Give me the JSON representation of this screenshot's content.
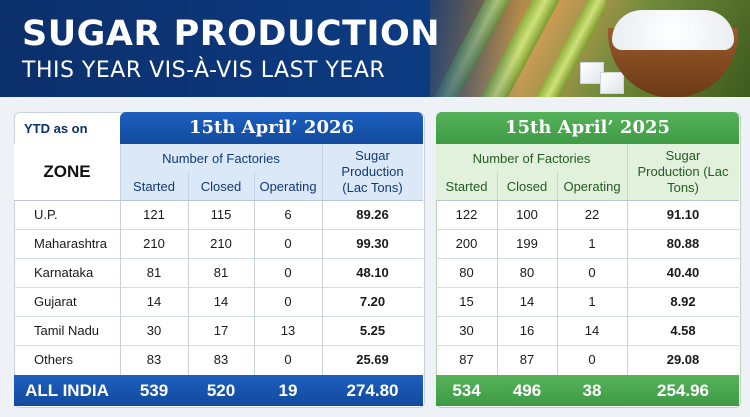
{
  "header": {
    "title": "SUGAR PRODUCTION",
    "subtitle": "THIS YEAR VIS-À-VIS LAST YEAR"
  },
  "table": {
    "ytd_label": "YTD as on",
    "zone_header": "ZONE",
    "factories_header": "Number of Factories",
    "production_header": "Sugar Production (Lac Tons)",
    "sub_headers": [
      "Started",
      "Closed",
      "Operating"
    ],
    "periods": [
      {
        "date": "15th April’ 2026",
        "accent": "#124a9c"
      },
      {
        "date": "15th April’ 2025",
        "accent": "#3f9a45"
      }
    ],
    "rows": [
      {
        "zone": "U.P.",
        "y2026": [
          "121",
          "115",
          "6",
          "89.26"
        ],
        "y2025": [
          "122",
          "100",
          "22",
          "91.10"
        ]
      },
      {
        "zone": "Maharashtra",
        "y2026": [
          "210",
          "210",
          "0",
          "99.30"
        ],
        "y2025": [
          "200",
          "199",
          "1",
          "80.88"
        ]
      },
      {
        "zone": "Karnataka",
        "y2026": [
          "81",
          "81",
          "0",
          "48.10"
        ],
        "y2025": [
          "80",
          "80",
          "0",
          "40.40"
        ]
      },
      {
        "zone": "Gujarat",
        "y2026": [
          "14",
          "14",
          "0",
          "7.20"
        ],
        "y2025": [
          "15",
          "14",
          "1",
          "8.92"
        ]
      },
      {
        "zone": "Tamil Nadu",
        "y2026": [
          "30",
          "17",
          "13",
          "5.25"
        ],
        "y2025": [
          "30",
          "16",
          "14",
          "4.58"
        ]
      },
      {
        "zone": "Others",
        "y2026": [
          "83",
          "83",
          "0",
          "25.69"
        ],
        "y2025": [
          "87",
          "87",
          "0",
          "29.08"
        ]
      }
    ],
    "total": {
      "zone": "ALL INDIA",
      "y2026": [
        "539",
        "520",
        "19",
        "274.80"
      ],
      "y2025": [
        "534",
        "496",
        "38",
        "254.96"
      ]
    }
  }
}
